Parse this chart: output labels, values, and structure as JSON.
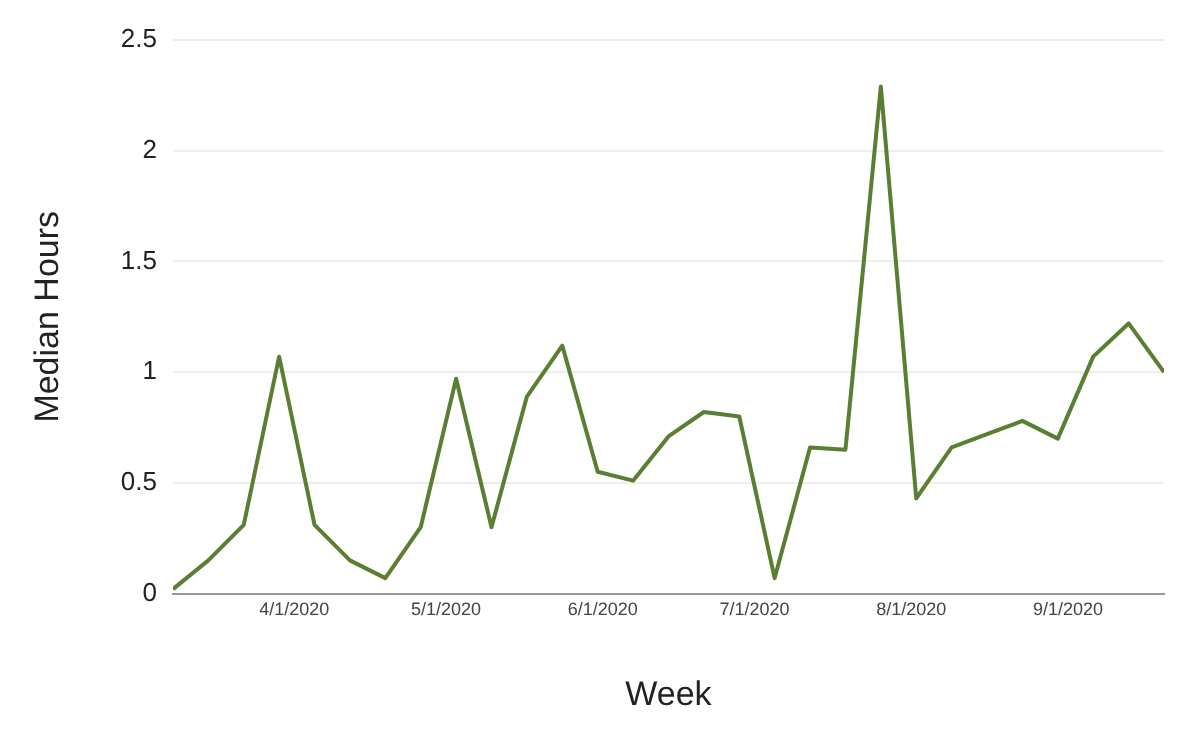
{
  "chart_data": {
    "type": "line",
    "xlabel": "Week",
    "ylabel": "Median Hours",
    "x": [
      "2020-03-08",
      "2020-03-15",
      "2020-03-22",
      "2020-03-29",
      "2020-04-05",
      "2020-04-12",
      "2020-04-19",
      "2020-04-26",
      "2020-05-03",
      "2020-05-10",
      "2020-05-17",
      "2020-05-24",
      "2020-05-31",
      "2020-06-07",
      "2020-06-14",
      "2020-06-21",
      "2020-06-28",
      "2020-07-05",
      "2020-07-12",
      "2020-07-19",
      "2020-07-26",
      "2020-08-02",
      "2020-08-09",
      "2020-08-16",
      "2020-08-23",
      "2020-08-30",
      "2020-09-06",
      "2020-09-13",
      "2020-09-20"
    ],
    "series": [
      {
        "color": "#5a7f32",
        "values": [
          0.02,
          0.15,
          0.31,
          1.07,
          0.31,
          0.15,
          0.07,
          0.3,
          0.97,
          0.3,
          0.89,
          1.12,
          0.55,
          0.51,
          0.71,
          0.82,
          0.8,
          0.07,
          0.66,
          0.65,
          2.29,
          0.43,
          0.66,
          0.72,
          0.78,
          0.7,
          1.07,
          1.22,
          1.0
        ]
      }
    ],
    "xlim": [
      "2020-03-08",
      "2020-09-20"
    ],
    "xticks": [
      {
        "value": "2020-04-01",
        "label": "4/1/2020"
      },
      {
        "value": "2020-05-01",
        "label": "5/1/2020"
      },
      {
        "value": "2020-06-01",
        "label": "6/1/2020"
      },
      {
        "value": "2020-07-01",
        "label": "7/1/2020"
      },
      {
        "value": "2020-08-01",
        "label": "8/1/2020"
      },
      {
        "value": "2020-09-01",
        "label": "9/1/2020"
      }
    ],
    "ylim": [
      0,
      2.5
    ],
    "yticks": [
      0,
      0.5,
      1,
      1.5,
      2,
      2.5
    ],
    "grid": "y",
    "legend": false,
    "marker": "none",
    "line_style": "solid"
  }
}
